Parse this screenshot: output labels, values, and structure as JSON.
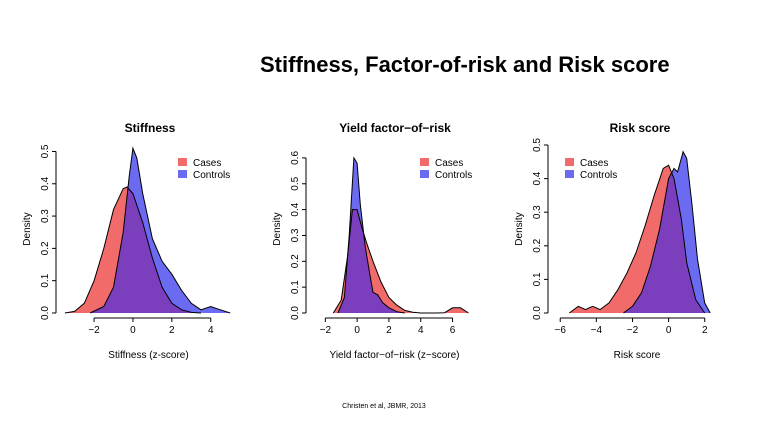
{
  "slide": {
    "title": "Stiffness, Factor-of-risk and Risk score",
    "citation": "Christen et al, JBMR, 2013"
  },
  "colors": {
    "cases": "#f26b6b",
    "controls": "#6b6bf2",
    "overlap": "#7b3fbe"
  },
  "chart_data": [
    {
      "type": "area",
      "title": "Stiffness",
      "xlabel": "Stiffness (z-score)",
      "ylabel": "Density",
      "xlim": [
        -3.7,
        5.3
      ],
      "ylim": [
        0,
        0.52
      ],
      "xticks": [
        -2,
        0,
        2,
        4
      ],
      "yticks": [
        0.0,
        0.1,
        0.2,
        0.3,
        0.4,
        0.5
      ],
      "legend": "top-right",
      "series": [
        {
          "name": "Cases",
          "x": [
            -3.5,
            -3,
            -2.5,
            -2,
            -1.5,
            -1,
            -0.5,
            -0.3,
            0,
            0.5,
            1,
            1.5,
            2,
            2.5,
            3,
            3.5
          ],
          "y": [
            0,
            0.005,
            0.03,
            0.1,
            0.2,
            0.32,
            0.385,
            0.39,
            0.37,
            0.28,
            0.17,
            0.08,
            0.03,
            0.01,
            0.002,
            0
          ]
        },
        {
          "name": "Controls",
          "x": [
            -2.2,
            -1.5,
            -1,
            -0.5,
            -0.2,
            0,
            0.2,
            0.5,
            1,
            1.5,
            2,
            2.5,
            3,
            3.5,
            4,
            4.5,
            5
          ],
          "y": [
            0,
            0.02,
            0.08,
            0.25,
            0.42,
            0.51,
            0.48,
            0.37,
            0.23,
            0.16,
            0.12,
            0.07,
            0.03,
            0.01,
            0.02,
            0.01,
            0
          ]
        }
      ]
    },
    {
      "type": "area",
      "title": "Yield factor−of−risk",
      "xlabel": "Yield factor−of−risk (z−score)",
      "ylabel": "Density",
      "xlim": [
        -2.9,
        7.6
      ],
      "ylim": [
        0,
        0.65
      ],
      "xticks": [
        -2,
        0,
        2,
        4,
        6
      ],
      "yticks": [
        0.0,
        0.1,
        0.2,
        0.3,
        0.4,
        0.5,
        0.6
      ],
      "legend": "top-right",
      "series": [
        {
          "name": "Cases",
          "x": [
            -1.5,
            -1,
            -0.6,
            -0.3,
            0,
            0.3,
            0.6,
            1,
            1.5,
            2,
            2.5,
            3,
            3.5,
            4,
            5,
            5.5,
            6,
            6.5,
            7
          ],
          "y": [
            0,
            0.05,
            0.22,
            0.4,
            0.4,
            0.33,
            0.27,
            0.2,
            0.12,
            0.06,
            0.03,
            0.01,
            0.003,
            0,
            0,
            0.001,
            0.02,
            0.02,
            0
          ]
        },
        {
          "name": "Controls",
          "x": [
            -1.2,
            -0.8,
            -0.5,
            -0.2,
            0,
            0.2,
            0.5,
            0.8,
            1,
            1.3,
            1.6,
            2,
            2.5,
            3
          ],
          "y": [
            0,
            0.06,
            0.3,
            0.6,
            0.58,
            0.42,
            0.26,
            0.15,
            0.08,
            0.07,
            0.04,
            0.02,
            0.005,
            0
          ]
        }
      ]
    },
    {
      "type": "area",
      "title": "Risk score",
      "xlabel": "Risk score",
      "ylabel": "Density",
      "xlim": [
        -6.4,
        2.9
      ],
      "ylim": [
        0,
        0.5
      ],
      "xticks": [
        -6,
        -4,
        -2,
        0,
        2
      ],
      "yticks": [
        0.0,
        0.1,
        0.2,
        0.3,
        0.4,
        0.5
      ],
      "legend": "top-left",
      "series": [
        {
          "name": "Cases",
          "x": [
            -5.5,
            -5,
            -4.6,
            -4.2,
            -3.8,
            -3.3,
            -2.8,
            -2.3,
            -1.8,
            -1.3,
            -0.8,
            -0.3,
            0,
            0.3,
            0.7,
            1,
            1.5,
            2
          ],
          "y": [
            0,
            0.02,
            0.01,
            0.02,
            0.01,
            0.03,
            0.07,
            0.12,
            0.18,
            0.26,
            0.35,
            0.43,
            0.44,
            0.4,
            0.28,
            0.15,
            0.04,
            0
          ]
        },
        {
          "name": "Controls",
          "x": [
            -2.5,
            -2,
            -1.5,
            -1,
            -0.5,
            0,
            0.3,
            0.5,
            0.8,
            1,
            1.3,
            1.6,
            2,
            2.3
          ],
          "y": [
            0,
            0.02,
            0.06,
            0.14,
            0.25,
            0.4,
            0.43,
            0.42,
            0.48,
            0.46,
            0.32,
            0.16,
            0.03,
            0
          ]
        }
      ]
    }
  ]
}
